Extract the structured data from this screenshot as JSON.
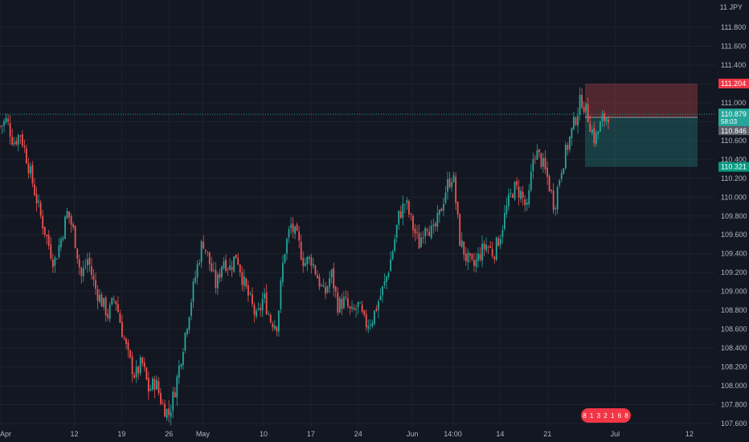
{
  "chart_data": {
    "type": "candlestick",
    "currency": "JPY",
    "y_ticks": [
      "111.800",
      "111.600",
      "111.400",
      "111.200",
      "111.000",
      "110.800",
      "110.600",
      "110.400",
      "110.200",
      "110.000",
      "109.800",
      "109.600",
      "109.400",
      "109.200",
      "109.000",
      "108.800",
      "108.600",
      "108.400",
      "108.200",
      "108.000",
      "107.800",
      "107.600"
    ],
    "x_ticks": [
      {
        "label": "Apr",
        "day": 0
      },
      {
        "label": "12",
        "day": 11
      },
      {
        "label": "19",
        "day": 18
      },
      {
        "label": "26",
        "day": 25
      },
      {
        "label": "May",
        "day": 30
      },
      {
        "label": "10",
        "day": 39
      },
      {
        "label": "17",
        "day": 46
      },
      {
        "label": "24",
        "day": 53
      },
      {
        "label": "Jun",
        "day": 61
      },
      {
        "label": "14:00",
        "day": 67
      },
      {
        "label": "14",
        "day": 74
      },
      {
        "label": "21",
        "day": 81
      },
      {
        "label": "Jul",
        "day": 91
      },
      {
        "label": "12",
        "day": 102
      }
    ],
    "ylim": [
      107.58,
      112.0
    ],
    "xlim_days": [
      0,
      113
    ],
    "close_path": [
      [
        0,
        110.75
      ],
      [
        1,
        110.82
      ],
      [
        2,
        110.58
      ],
      [
        3,
        110.68
      ],
      [
        4,
        110.4
      ],
      [
        5,
        110.1
      ],
      [
        6,
        109.8
      ],
      [
        7,
        109.55
      ],
      [
        8,
        109.3
      ],
      [
        9,
        109.55
      ],
      [
        10,
        109.85
      ],
      [
        11,
        109.6
      ],
      [
        12,
        109.15
      ],
      [
        13,
        109.35
      ],
      [
        14,
        109.05
      ],
      [
        15,
        108.9
      ],
      [
        16,
        108.75
      ],
      [
        17,
        108.95
      ],
      [
        18,
        108.6
      ],
      [
        19,
        108.3
      ],
      [
        20,
        108.1
      ],
      [
        21,
        108.25
      ],
      [
        22,
        107.95
      ],
      [
        23,
        108.05
      ],
      [
        24,
        107.8
      ],
      [
        25,
        107.7
      ],
      [
        26,
        108.0
      ],
      [
        27,
        108.4
      ],
      [
        28,
        108.8
      ],
      [
        29,
        109.2
      ],
      [
        30,
        109.55
      ],
      [
        31,
        109.3
      ],
      [
        32,
        109.05
      ],
      [
        33,
        109.35
      ],
      [
        34,
        109.25
      ],
      [
        35,
        109.4
      ],
      [
        36,
        109.1
      ],
      [
        37,
        108.9
      ],
      [
        38,
        108.7
      ],
      [
        39,
        108.95
      ],
      [
        40,
        108.7
      ],
      [
        41,
        108.65
      ],
      [
        42,
        109.4
      ],
      [
        43,
        109.7
      ],
      [
        44,
        109.55
      ],
      [
        45,
        109.3
      ],
      [
        46,
        109.35
      ],
      [
        47,
        109.15
      ],
      [
        48,
        108.95
      ],
      [
        49,
        109.2
      ],
      [
        50,
        108.85
      ],
      [
        51,
        108.9
      ],
      [
        52,
        108.75
      ],
      [
        53,
        108.85
      ],
      [
        54,
        108.65
      ],
      [
        55,
        108.7
      ],
      [
        56,
        108.9
      ],
      [
        57,
        109.1
      ],
      [
        58,
        109.4
      ],
      [
        59,
        109.8
      ],
      [
        60,
        109.95
      ],
      [
        61,
        109.7
      ],
      [
        62,
        109.5
      ],
      [
        63,
        109.75
      ],
      [
        64,
        109.6
      ],
      [
        65,
        109.8
      ],
      [
        66,
        110.1
      ],
      [
        67,
        110.25
      ],
      [
        68,
        109.55
      ],
      [
        69,
        109.35
      ],
      [
        70,
        109.25
      ],
      [
        71,
        109.4
      ],
      [
        72,
        109.5
      ],
      [
        73,
        109.4
      ],
      [
        74,
        109.6
      ],
      [
        75,
        109.9
      ],
      [
        76,
        110.1
      ],
      [
        77,
        110.05
      ],
      [
        78,
        109.85
      ],
      [
        79,
        110.5
      ],
      [
        80,
        110.4
      ],
      [
        81,
        110.2
      ],
      [
        82,
        109.9
      ],
      [
        83,
        110.3
      ],
      [
        84,
        110.55
      ],
      [
        85,
        110.8
      ],
      [
        86,
        111.05
      ],
      [
        87,
        110.85
      ],
      [
        88,
        110.6
      ],
      [
        89,
        110.8
      ],
      [
        90,
        110.88
      ]
    ],
    "last_price": "110.879",
    "countdown": "58:03",
    "bid_label": "110.846",
    "take_profit_label": "111.204",
    "stop_label": "110.321",
    "colors": {
      "up": "#26a69a",
      "down": "#ef5350",
      "background": "#131722",
      "grid": "#1e222d",
      "text": "#b2b5be"
    }
  },
  "top_label": "11 JPY",
  "session_badge": "8 1 3  2 1 6  8"
}
